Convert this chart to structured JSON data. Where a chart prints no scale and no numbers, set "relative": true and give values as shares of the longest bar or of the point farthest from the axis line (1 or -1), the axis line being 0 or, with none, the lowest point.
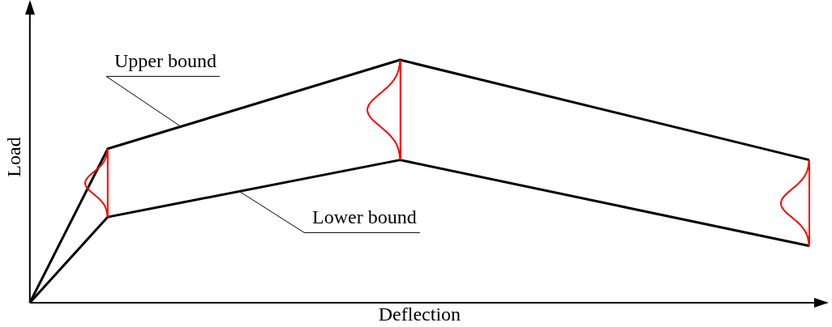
{
  "chart_data": {
    "type": "line",
    "relative": true,
    "xlabel": "Deflection",
    "ylabel": "Load",
    "categories": [
      null,
      null,
      null,
      null,
      null,
      null,
      null,
      null,
      null,
      null,
      null,
      null,
      null,
      null,
      null,
      null,
      null,
      null,
      null,
      null,
      null,
      null,
      null,
      null,
      null,
      null,
      null,
      null,
      null,
      null,
      null,
      null,
      null,
      null,
      null,
      null,
      null,
      null,
      null,
      null,
      null
    ],
    "grid": false,
    "marker": "none",
    "line_style": "solid",
    "series": [
      {
        "name": "Upper bound",
        "color": "#000000",
        "values": [
          0,
          null,
          null,
          null,
          0.634,
          null,
          null,
          null,
          null,
          null,
          null,
          null,
          null,
          null,
          null,
          null,
          null,
          null,
          null,
          1,
          null,
          null,
          null,
          null,
          null,
          null,
          null,
          null,
          null,
          null,
          null,
          null,
          null,
          null,
          null,
          null,
          null,
          null,
          null,
          null,
          0.588
        ]
      },
      {
        "name": "Lower bound",
        "color": "#000000",
        "values": [
          0,
          null,
          null,
          null,
          0.353,
          null,
          null,
          null,
          null,
          null,
          null,
          null,
          null,
          null,
          null,
          null,
          null,
          null,
          null,
          0.588,
          null,
          null,
          null,
          null,
          null,
          null,
          null,
          null,
          null,
          null,
          null,
          null,
          null,
          null,
          null,
          null,
          null,
          null,
          null,
          null,
          0.234
        ]
      }
    ]
  }
}
